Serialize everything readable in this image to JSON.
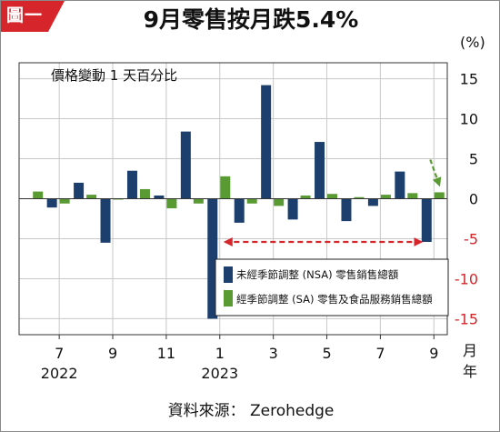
{
  "badge": "圖一",
  "title": "9月零售按月跌5.4%",
  "source": "資料來源： Zerohedge",
  "colors": {
    "nsa": "#1d3f6e",
    "sa": "#5a9a33",
    "badge": "#d6262b",
    "arrow_red": "#d7262b",
    "arrow_green": "#5a9a33"
  },
  "chart_data": {
    "type": "bar",
    "title": "9月零售按月跌5.4%",
    "subtitle": "價格變動 1 天百分比",
    "unit": "(%)",
    "x_unit": "月\n年",
    "xlabel": "",
    "ylabel": "",
    "ylim": [
      -17,
      17
    ],
    "y_ticks": [
      15,
      10,
      5,
      0,
      -5,
      -10,
      -15
    ],
    "grid": true,
    "legend_position": "bottom-right",
    "categories": [
      "2022-06",
      "2022-07",
      "2022-08",
      "2022-09",
      "2022-10",
      "2022-11",
      "2022-12",
      "2023-01",
      "2023-02",
      "2023-03",
      "2023-04",
      "2023-05",
      "2023-06",
      "2023-07",
      "2023-08",
      "2023-09"
    ],
    "x_tick_labels": [
      "7",
      "9",
      "11",
      "1",
      "3",
      "5",
      "7",
      "9"
    ],
    "x_tick_categories": [
      "2022-07",
      "2022-09",
      "2022-11",
      "2023-01",
      "2023-03",
      "2023-05",
      "2023-07",
      "2023-09"
    ],
    "year_labels": [
      {
        "label": "2022",
        "category": "2022-07"
      },
      {
        "label": "2023",
        "category": "2023-01"
      }
    ],
    "series": [
      {
        "name": "未經季節調整 (NSA) 零售銷售總額",
        "values": [
          null,
          -1.1,
          2.0,
          -5.5,
          3.5,
          0.4,
          8.4,
          -15.0,
          -3.0,
          14.2,
          -2.6,
          7.1,
          -2.8,
          -0.9,
          3.4,
          -5.4
        ]
      },
      {
        "name": "經季節調整 (SA) 零售及食品服務銷售總額",
        "values": [
          0.9,
          -0.6,
          0.5,
          -0.1,
          1.2,
          -1.2,
          -0.6,
          2.8,
          -0.6,
          -0.9,
          0.4,
          0.6,
          0.2,
          0.5,
          0.7,
          0.8
        ]
      }
    ],
    "annotations": [
      {
        "type": "arrow",
        "color": "red",
        "style": "dashed",
        "from": {
          "x": "2023-09",
          "y": -5.4
        },
        "to": {
          "x": "2023-01",
          "y": -5.4
        }
      },
      {
        "type": "arrow",
        "color": "green",
        "style": "dashed",
        "to": {
          "x": "2023-09",
          "y": 0.8
        }
      }
    ]
  }
}
